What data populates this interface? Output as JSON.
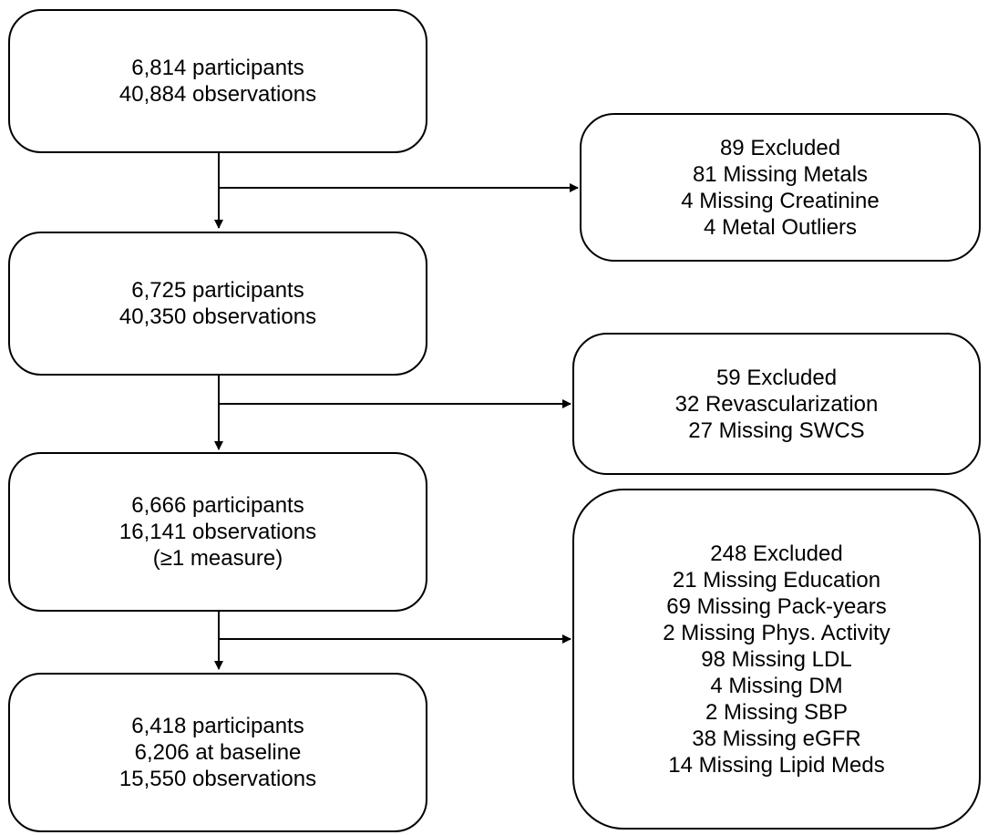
{
  "main_boxes": [
    {
      "lines": [
        "6,814 participants",
        "40,884 observations"
      ]
    },
    {
      "lines": [
        "6,725 participants",
        "40,350 observations"
      ]
    },
    {
      "lines": [
        "6,666 participants",
        "16,141 observations",
        "(≥1 measure)"
      ]
    },
    {
      "lines": [
        "6,418 participants",
        "6,206 at baseline",
        "15,550 observations"
      ]
    }
  ],
  "exclusion_boxes": [
    {
      "lines": [
        "89 Excluded",
        "81 Missing Metals",
        "4 Missing Creatinine",
        "4 Metal Outliers"
      ]
    },
    {
      "lines": [
        "59 Excluded",
        "32 Revascularization",
        "27 Missing SWCS"
      ]
    },
    {
      "lines": [
        "248 Excluded",
        "21 Missing Education",
        "69 Missing Pack-years",
        "2 Missing Phys. Activity",
        "98 Missing LDL",
        "4 Missing DM",
        "2 Missing SBP",
        "38 Missing eGFR",
        "14 Missing Lipid Meds"
      ]
    }
  ],
  "colors": {
    "stroke": "#000000",
    "background": "#ffffff"
  }
}
